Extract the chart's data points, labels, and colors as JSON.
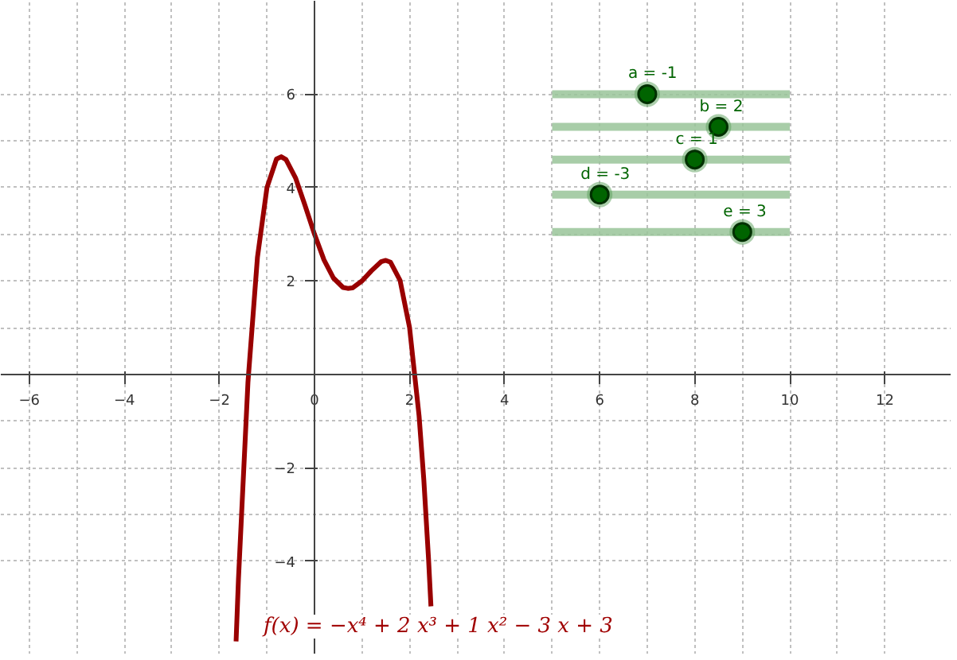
{
  "chart_data": {
    "type": "line",
    "xlim": [
      -6.6,
      13.4
    ],
    "ylim": [
      -6,
      8
    ],
    "xticks": [
      -6,
      -4,
      -2,
      0,
      2,
      4,
      6,
      8,
      10,
      12
    ],
    "yticks": [
      -4,
      -2,
      2,
      4,
      6
    ],
    "grid": true,
    "line_style": "solid",
    "marker": "none",
    "series": [
      {
        "color": "#990000",
        "x": [
          -1.65,
          -1.6,
          -1.4,
          -1.2,
          -1.0,
          -0.8,
          -0.7,
          -0.6,
          -0.4,
          -0.2,
          0,
          0.2,
          0.4,
          0.6,
          0.7,
          0.8,
          1.0,
          1.2,
          1.4,
          1.5,
          1.6,
          1.8,
          2.0,
          2.2,
          2.3,
          2.4,
          2.45
        ],
        "values": [
          -5.72,
          -4.39,
          -0.17,
          2.51,
          4,
          4.61,
          4.66,
          4.6,
          4.21,
          3.62,
          3,
          2.45,
          2.06,
          1.86,
          1.84,
          1.85,
          2,
          2.22,
          2.41,
          2.44,
          2.4,
          2.01,
          1,
          -0.89,
          -2.26,
          -3.97,
          -4.97
        ]
      },
      {
        "color": "#99c499",
        "x": [
          5,
          10
        ],
        "values": [
          6,
          6
        ]
      },
      {
        "color": "#99c499",
        "x": [
          5,
          10
        ],
        "values": [
          5.3,
          5.3
        ]
      },
      {
        "color": "#99c499",
        "x": [
          5,
          10
        ],
        "values": [
          4.6,
          4.6
        ]
      },
      {
        "color": "#99c499",
        "x": [
          5,
          10
        ],
        "values": [
          3.85,
          3.85
        ]
      },
      {
        "color": "#99c499",
        "x": [
          5,
          10
        ],
        "values": [
          3.05,
          3.05
        ]
      }
    ],
    "annotations": [
      {
        "text": "a = -1",
        "x": 7,
        "y": 6
      },
      {
        "text": "b = 2",
        "x": 8.5,
        "y": 5.3
      },
      {
        "text": "c = 1",
        "x": 8,
        "y": 4.6
      },
      {
        "text": "d = -3",
        "x": 6,
        "y": 3.85
      },
      {
        "text": "e = 3",
        "x": 9,
        "y": 3.05
      },
      "f(x) = −x⁴ + 2 x³ + 1 x² − 3 x + 3"
    ]
  }
}
